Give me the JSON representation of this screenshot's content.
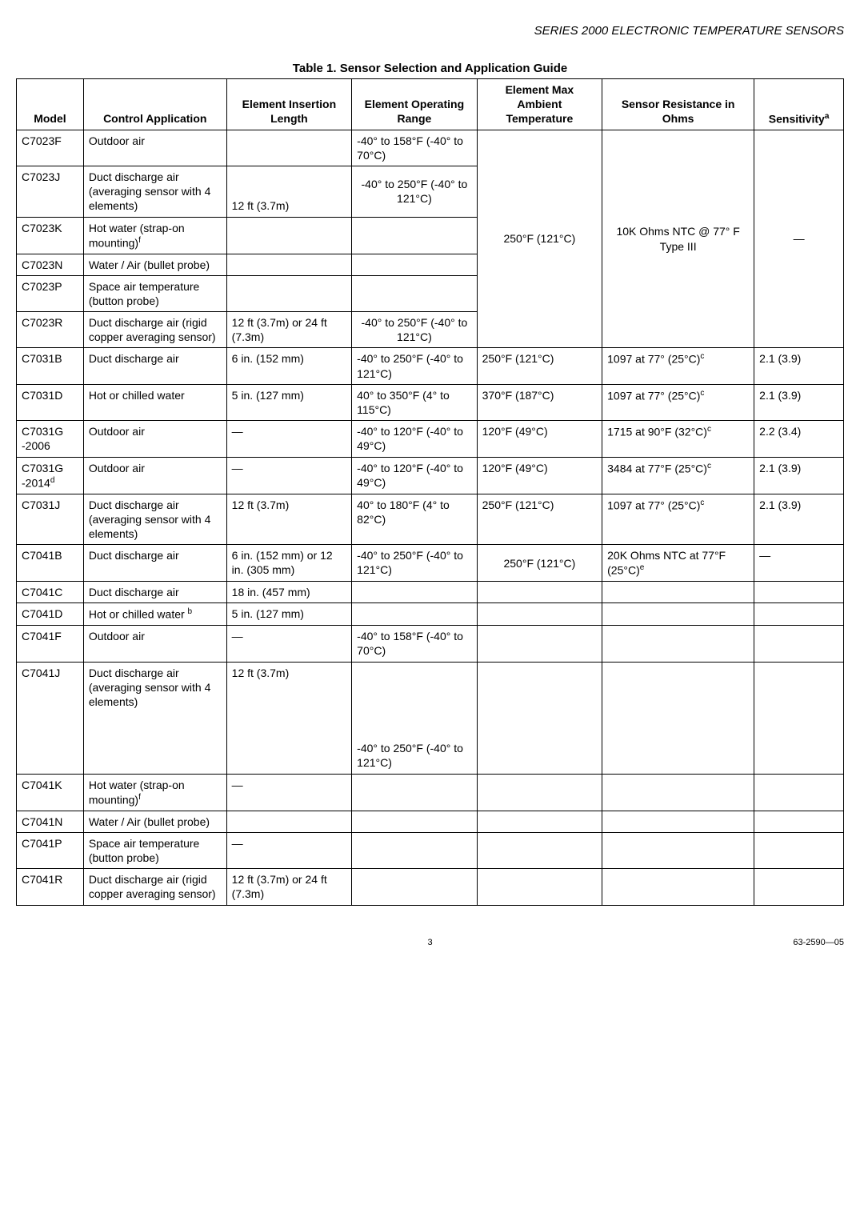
{
  "header": "SERIES 2000 ELECTRONIC TEMPERATURE SENSORS",
  "tableTitle": "Table 1. Sensor Selection and Application Guide",
  "columns": [
    "Model",
    "Control Application",
    "Element Insertion Length",
    "Element Operating Range",
    "Element Max Ambient Temperature",
    "Sensor Resistance in Ohms",
    "Sensitivity"
  ],
  "sensSup": "a",
  "g1": {
    "ambient": "250°F (121°C)",
    "resistance": "10K Ohms NTC @ 77° F Type III",
    "sens": "—",
    "rows": [
      {
        "m": "C7023F",
        "app": "Outdoor air",
        "len": "",
        "range": "-40° to 158°F (-40° to 70°C)"
      },
      {
        "m": "C7023J",
        "app": "Duct discharge air (averaging sensor with 4 elements)",
        "len": "12 ft (3.7m)",
        "range": "-40° to 250°F (-40° to 121°C)",
        "rangeCenter": true
      },
      {
        "m": "C7023K",
        "app": "Hot water (strap-on mounting)",
        "appSup": "f",
        "len": "",
        "range": ""
      },
      {
        "m": "C7023N",
        "app": "Water / Air (bullet probe)",
        "len": "",
        "range": ""
      },
      {
        "m": "C7023P",
        "app": "Space air temperature (button probe)",
        "len": "",
        "range": ""
      },
      {
        "m": "C7023R",
        "app": "Duct discharge air (rigid copper averaging sensor)",
        "len": "12 ft (3.7m) or 24 ft (7.3m)",
        "range": "-40° to 250°F (-40° to 121°C)",
        "rangeCenter": true
      }
    ]
  },
  "mid": [
    {
      "m": "C7031B",
      "app": "Duct discharge air",
      "len": "6 in. (152 mm)",
      "range": "-40° to 250°F (-40° to 121°C)",
      "amb": "250°F (121°C)",
      "res": "1097 at 77° (25°C)",
      "resSup": "c",
      "sens": "2.1 (3.9)"
    },
    {
      "m": "C7031D",
      "app": "Hot or chilled water",
      "len": "5 in. (127 mm)",
      "range": "40° to 350°F (4° to 115°C)",
      "amb": "370°F (187°C)",
      "res": "1097 at 77° (25°C)",
      "resSup": "c",
      "sens": "2.1 (3.9)"
    },
    {
      "m": "C7031G -2006",
      "app": "Outdoor air",
      "len": "—",
      "range": "-40° to 120°F (-40° to 49°C)",
      "amb": "120°F (49°C)",
      "res": "1715 at 90°F (32°C)",
      "resSup": "c",
      "sens": "2.2 (3.4)"
    },
    {
      "m": "C7031G -2014",
      "mSup": "d",
      "app": "Outdoor air",
      "len": "—",
      "range": "-40° to 120°F (-40° to 49°C)",
      "amb": "120°F (49°C)",
      "res": "3484 at 77°F (25°C)",
      "resSup": "c",
      "sens": "2.1 (3.9)"
    },
    {
      "m": "C7031J",
      "app": "Duct discharge air (averaging sensor with 4 elements)",
      "len": "12 ft (3.7m)",
      "range": "40° to 180°F (4° to 82°C)",
      "amb": "250°F (121°C)",
      "res": "1097 at 77° (25°C)",
      "resSup": "c",
      "sens": "2.1 (3.9)"
    },
    {
      "m": "C7041B",
      "app": "Duct discharge air",
      "len": "6 in. (152 mm) or 12 in. (305 mm)",
      "range": "-40° to 250°F (-40° to 121°C)",
      "amb": "250°F (121°C)",
      "ambCenter": true,
      "res": "20K Ohms NTC at 77°F (25°C)",
      "resSup": "e",
      "sens": "—"
    }
  ],
  "bottom": [
    {
      "m": "C7041C",
      "app": "Duct discharge air",
      "len": "18 in. (457 mm)",
      "range": ""
    },
    {
      "m": "C7041D",
      "app": "Hot or chilled water ",
      "appSup": "b",
      "len": "5 in. (127 mm)",
      "range": ""
    },
    {
      "m": "C7041F",
      "app": "Outdoor air",
      "len": "—",
      "range": "-40° to 158°F (-40° to 70°C)"
    },
    {
      "m": "C7041J",
      "app": "Duct discharge air (averaging sensor with 4 elements)",
      "len": "12 ft (3.7m)",
      "range": "-40° to 250°F (-40° to 121°C)",
      "tall": true,
      "rangeBottom": true
    },
    {
      "m": "C7041K",
      "app": "Hot water (strap-on mounting)",
      "appSup": "f",
      "len": "—",
      "range": ""
    },
    {
      "m": "C7041N",
      "app": "Water / Air (bullet probe)",
      "len": "",
      "range": ""
    },
    {
      "m": "C7041P",
      "app": "Space air temperature (button probe)",
      "len": "—",
      "range": ""
    },
    {
      "m": "C7041R",
      "app": "Duct discharge air (rigid copper averaging sensor)",
      "len": "12 ft (3.7m) or 24 ft (7.3m)",
      "range": ""
    }
  ],
  "footer": {
    "page": "3",
    "doc": "63-2590—05"
  }
}
